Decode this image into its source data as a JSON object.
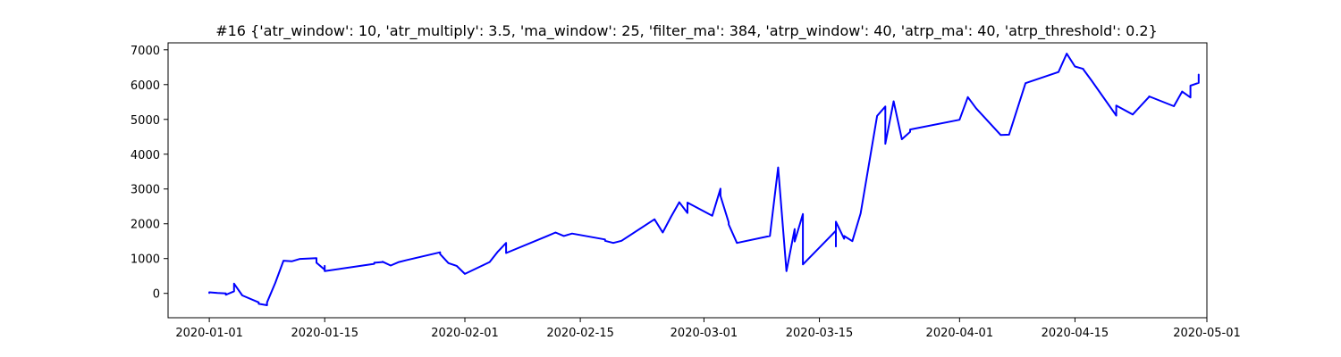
{
  "chart_data": {
    "type": "line",
    "title": "#16 {'atr_window': 10, 'atr_multiply': 3.5, 'ma_window': 25, 'filter_ma': 384, 'atrp_window': 40, 'atrp_ma': 40, 'atrp_threshold': 0.2}",
    "xlabel": "",
    "ylabel": "",
    "grid": false,
    "legend": "none",
    "line_color": "#0000ff",
    "xlim": [
      "2019-12-27",
      "2020-05-01"
    ],
    "ylim": [
      -700,
      7200
    ],
    "x_ticks": [
      "2020-01-01",
      "2020-01-15",
      "2020-02-01",
      "2020-02-15",
      "2020-03-01",
      "2020-03-15",
      "2020-04-01",
      "2020-04-15",
      "2020-05-01"
    ],
    "y_ticks": [
      0,
      1000,
      2000,
      3000,
      4000,
      5000,
      6000,
      7000
    ],
    "series": [
      {
        "x": [
          "2020-01-01",
          "2020-01-01",
          "2020-01-02",
          "2020-01-03",
          "2020-01-03",
          "2020-01-04",
          "2020-01-04",
          "2020-01-05",
          "2020-01-07",
          "2020-01-07",
          "2020-01-08",
          "2020-01-08",
          "2020-01-09",
          "2020-01-10",
          "2020-01-11",
          "2020-01-12",
          "2020-01-14",
          "2020-01-14",
          "2020-01-14",
          "2020-01-15",
          "2020-01-15",
          "2020-01-15",
          "2020-01-21",
          "2020-01-21",
          "2020-01-22",
          "2020-01-22",
          "2020-01-23",
          "2020-01-24",
          "2020-01-25",
          "2020-01-29",
          "2020-01-29",
          "2020-01-30",
          "2020-01-31",
          "2020-02-01",
          "2020-02-04",
          "2020-02-05",
          "2020-02-06",
          "2020-02-06",
          "2020-02-11",
          "2020-02-12",
          "2020-02-13",
          "2020-02-14",
          "2020-02-18",
          "2020-02-18",
          "2020-02-19",
          "2020-02-20",
          "2020-02-24",
          "2020-02-25",
          "2020-02-26",
          "2020-02-27",
          "2020-02-28",
          "2020-02-28",
          "2020-03-02",
          "2020-03-03",
          "2020-03-03",
          "2020-03-04",
          "2020-03-04",
          "2020-03-05",
          "2020-03-09",
          "2020-03-10",
          "2020-03-11",
          "2020-03-12",
          "2020-03-12",
          "2020-03-13",
          "2020-03-13",
          "2020-03-13",
          "2020-03-16",
          "2020-03-17",
          "2020-03-17",
          "2020-03-17",
          "2020-03-18",
          "2020-03-18",
          "2020-03-19",
          "2020-03-20",
          "2020-03-22",
          "2020-03-23",
          "2020-03-23",
          "2020-03-24",
          "2020-03-25",
          "2020-03-26",
          "2020-03-26",
          "2020-04-01",
          "2020-04-02",
          "2020-04-03",
          "2020-04-06",
          "2020-04-07",
          "2020-04-09",
          "2020-04-13",
          "2020-04-14",
          "2020-04-15",
          "2020-04-16",
          "2020-04-16",
          "2020-04-17",
          "2020-04-20",
          "2020-04-20",
          "2020-04-22",
          "2020-04-24",
          "2020-04-24",
          "2020-04-27",
          "2020-04-28",
          "2020-04-29",
          "2020-04-29",
          "2020-04-30",
          "2020-04-30"
        ],
        "y": [
          0,
          30,
          10,
          0,
          -40,
          60,
          280,
          -60,
          -260,
          -300,
          -340,
          -260,
          300,
          940,
          920,
          990,
          1010,
          920,
          880,
          680,
          790,
          640,
          850,
          880,
          900,
          910,
          800,
          900,
          960,
          1180,
          1130,
          870,
          790,
          560,
          900,
          1200,
          1450,
          1160,
          1650,
          1750,
          1650,
          1720,
          1550,
          1510,
          1450,
          1510,
          2130,
          1750,
          2200,
          2620,
          2310,
          2610,
          2230,
          3010,
          2800,
          2040,
          1980,
          1450,
          1650,
          3620,
          640,
          1850,
          1490,
          2280,
          1500,
          830,
          1560,
          1800,
          1350,
          2060,
          1570,
          1650,
          1500,
          2300,
          5100,
          5370,
          4300,
          5520,
          4430,
          4640,
          4710,
          4990,
          5640,
          5320,
          4550,
          4560,
          6040,
          6360,
          6890,
          6520,
          6450,
          6440,
          6120,
          5110,
          5400,
          5140,
          5650,
          5660,
          5380,
          5800,
          5630,
          5970,
          6050,
          6300
        ]
      }
    ]
  }
}
